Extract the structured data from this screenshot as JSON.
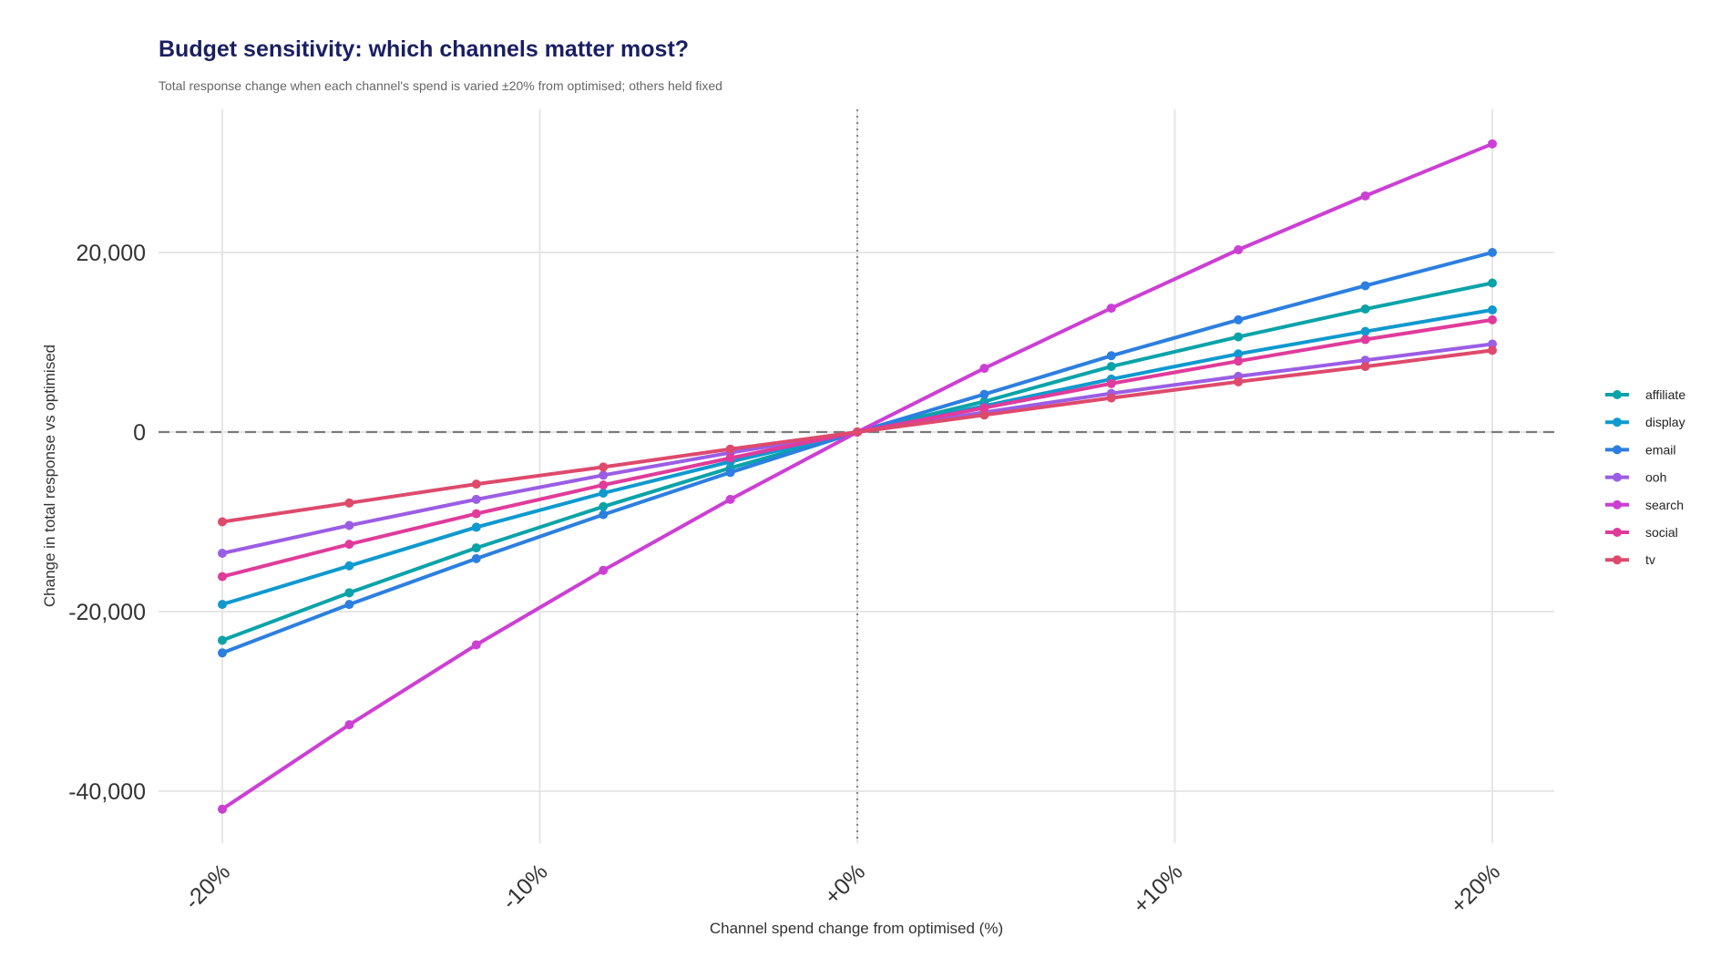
{
  "chart_data": {
    "type": "line",
    "title": "Budget sensitivity: which channels matter most?",
    "subtitle": "Total response change when each channel's spend is varied ±20% from optimised; others held fixed",
    "xlabel": "Channel spend change from optimised (%)",
    "ylabel": "Change in total response vs optimised",
    "x": [
      -20,
      -16,
      -12,
      -8,
      -4,
      0,
      4,
      8,
      12,
      16,
      20
    ],
    "x_ticks": [
      -20,
      -10,
      0,
      10,
      20
    ],
    "x_tick_labels": [
      "-20%",
      "-10%",
      "+0%",
      "+10%",
      "+20%"
    ],
    "y_ticks": [
      -40000,
      -20000,
      0,
      20000
    ],
    "y_tick_labels": [
      "-40,000",
      "-20,000",
      "0",
      "20,000"
    ],
    "xlim": [
      -22,
      22
    ],
    "ylim": [
      -46000,
      36000
    ],
    "grid": true,
    "reference_lines": {
      "y0": "dashed",
      "x0": "dotted"
    },
    "legend_position": "right",
    "series": [
      {
        "name": "affiliate",
        "color": "#0aa3a8",
        "values": [
          -23200,
          -17900,
          -12900,
          -8300,
          -4000,
          0,
          3400,
          7300,
          10600,
          13700,
          16600
        ]
      },
      {
        "name": "display",
        "color": "#0f99cf",
        "values": [
          -19200,
          -14900,
          -10600,
          -6800,
          -3300,
          0,
          2900,
          5900,
          8700,
          11200,
          13600
        ]
      },
      {
        "name": "email",
        "color": "#2c7fe0",
        "values": [
          -24600,
          -19200,
          -14100,
          -9200,
          -4500,
          0,
          4200,
          8500,
          12500,
          16300,
          20000
        ]
      },
      {
        "name": "ooh",
        "color": "#9b5de5",
        "values": [
          -13500,
          -10400,
          -7500,
          -4800,
          -2300,
          0,
          2200,
          4300,
          6200,
          8000,
          9800
        ]
      },
      {
        "name": "search",
        "color": "#cc3fd4",
        "values": [
          -42000,
          -32600,
          -23700,
          -15400,
          -7500,
          0,
          7100,
          13800,
          20300,
          26300,
          32100
        ]
      },
      {
        "name": "social",
        "color": "#e03b9a",
        "values": [
          -16100,
          -12500,
          -9100,
          -5900,
          -2900,
          0,
          2700,
          5400,
          7900,
          10300,
          12500
        ]
      },
      {
        "name": "tv",
        "color": "#de4a6c",
        "values": [
          -10000,
          -7900,
          -5800,
          -3900,
          -1900,
          0,
          1900,
          3800,
          5600,
          7300,
          9100
        ]
      }
    ]
  }
}
